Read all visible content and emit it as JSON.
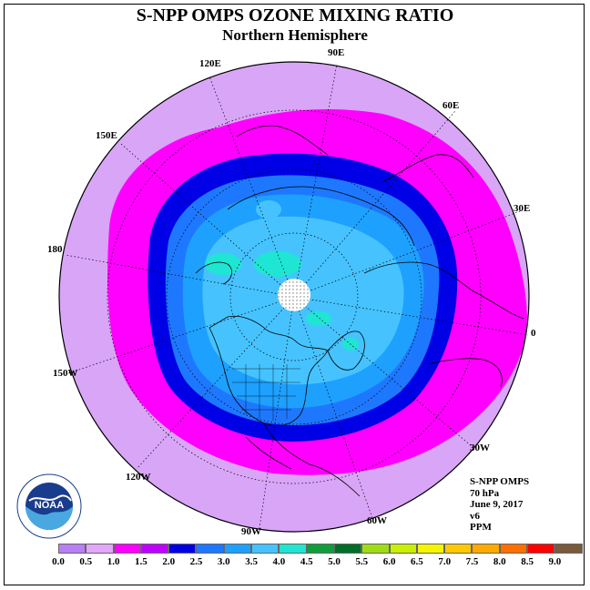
{
  "title": "S-NPP OMPS OZONE MIXING RATIO",
  "subtitle": "Northern Hemisphere",
  "longitude_labels": [
    "90E",
    "120E",
    "60E",
    "150E",
    "30E",
    "180",
    "0",
    "150W",
    "30W",
    "120W",
    "60W",
    "90W"
  ],
  "info": {
    "instrument": "S-NPP OMPS",
    "pressure": "70 hPa",
    "date": "June 9, 2017",
    "version": "v6",
    "units": "PPM"
  },
  "colorbar": {
    "colors": [
      "#b87ef5",
      "#e2a7fa",
      "#ff00ff",
      "#bf00ff",
      "#0000e6",
      "#1e78ff",
      "#1ea0ff",
      "#46c3ff",
      "#1ee6d2",
      "#109e3c",
      "#006e28",
      "#a0dc14",
      "#c8f000",
      "#f5f500",
      "#ffc800",
      "#ffaa00",
      "#ff6e00",
      "#ff0000",
      "#7a5a3a"
    ],
    "ticks": [
      "0.0",
      "0.5",
      "1.0",
      "1.5",
      "2.0",
      "2.5",
      "3.0",
      "3.5",
      "4.0",
      "4.5",
      "5.0",
      "5.5",
      "6.0",
      "6.5",
      "7.0",
      "7.5",
      "8.0",
      "8.5",
      "9.0"
    ]
  },
  "logo_text": "NOAA"
}
